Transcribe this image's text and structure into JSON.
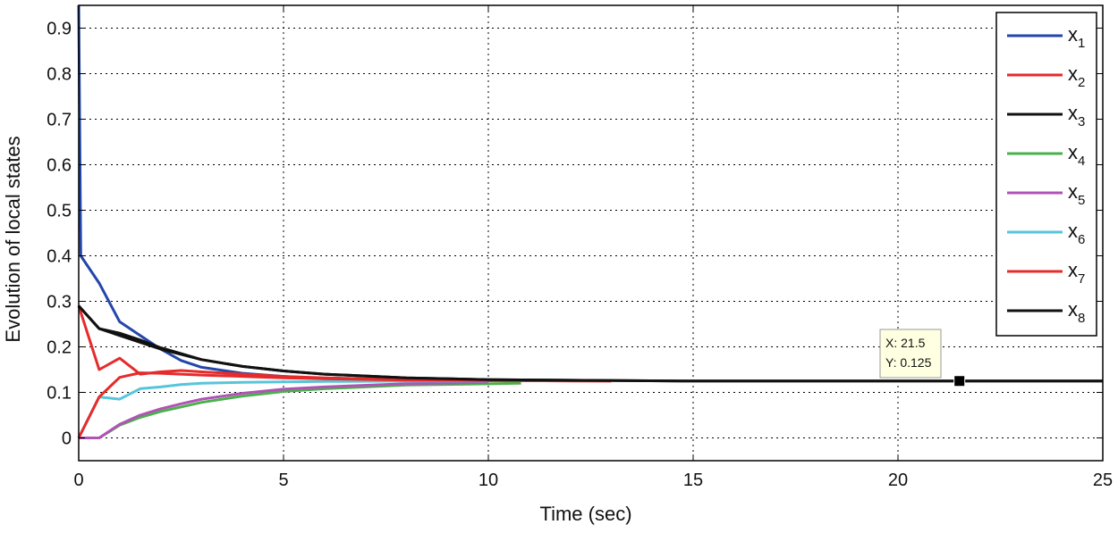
{
  "chart_data": {
    "type": "line",
    "title": "",
    "xlabel": "Time (sec)",
    "ylabel": "Evolution of local states",
    "xlim": [
      0,
      25
    ],
    "ylim": [
      -0.05,
      0.95
    ],
    "xticks": [
      "0",
      "5",
      "10",
      "15",
      "20",
      "25"
    ],
    "yticks": [
      "0",
      "0.1",
      "0.2",
      "0.3",
      "0.4",
      "0.5",
      "0.6",
      "0.7",
      "0.8",
      "0.9"
    ],
    "grid": true,
    "legend_position": "top-right",
    "series": [
      {
        "name": "x1",
        "label_main": "x",
        "label_sub": "1",
        "color": "#2346a8",
        "x": [
          0,
          0.05,
          0.5,
          1,
          1.5,
          2,
          2.5,
          3,
          4,
          5,
          6,
          8,
          10
        ],
        "y": [
          0.95,
          0.4,
          0.34,
          0.255,
          0.225,
          0.195,
          0.17,
          0.155,
          0.142,
          0.135,
          0.13,
          0.127,
          0.126
        ]
      },
      {
        "name": "x2",
        "label_main": "x",
        "label_sub": "2",
        "color": "#e52b2b",
        "x": [
          0,
          0.5,
          1,
          1.5,
          2,
          2.5,
          3,
          4,
          5,
          6,
          8,
          10,
          13
        ],
        "y": [
          0.29,
          0.15,
          0.175,
          0.14,
          0.145,
          0.148,
          0.145,
          0.14,
          0.135,
          0.132,
          0.128,
          0.126,
          0.125
        ]
      },
      {
        "name": "x3",
        "label_main": "x",
        "label_sub": "3",
        "color": "#111111",
        "x": [
          0,
          0.5,
          1,
          1.5,
          2,
          2.5,
          3,
          4,
          5,
          6,
          8,
          10,
          15,
          20,
          25
        ],
        "y": [
          0.29,
          0.24,
          0.23,
          0.215,
          0.198,
          0.185,
          0.172,
          0.157,
          0.147,
          0.14,
          0.132,
          0.128,
          0.125,
          0.125,
          0.125
        ]
      },
      {
        "name": "x4",
        "label_main": "x",
        "label_sub": "4",
        "color": "#49b14b",
        "x": [
          0,
          0.5,
          1,
          1.5,
          2,
          2.5,
          3,
          4,
          5,
          6,
          8,
          10.8
        ],
        "y": [
          0,
          0,
          0.028,
          0.045,
          0.058,
          0.068,
          0.078,
          0.092,
          0.102,
          0.108,
          0.116,
          0.12
        ]
      },
      {
        "name": "x5",
        "label_main": "x",
        "label_sub": "5",
        "color": "#b053b5",
        "x": [
          0,
          0.5,
          1,
          1.5,
          2,
          2.5,
          3,
          4,
          5,
          6,
          8,
          10
        ],
        "y": [
          0,
          0,
          0.03,
          0.05,
          0.064,
          0.075,
          0.085,
          0.098,
          0.107,
          0.112,
          0.119,
          0.122
        ]
      },
      {
        "name": "x6",
        "label_main": "x",
        "label_sub": "6",
        "color": "#57c5d9",
        "x": [
          0,
          0.5,
          1,
          1.5,
          2,
          2.5,
          3,
          4,
          5,
          6,
          8,
          10
        ],
        "y": [
          0,
          0.09,
          0.085,
          0.108,
          0.112,
          0.117,
          0.12,
          0.122,
          0.123,
          0.124,
          0.125,
          0.125
        ]
      },
      {
        "name": "x7",
        "label_main": "x",
        "label_sub": "7",
        "color": "#e52b2b",
        "x": [
          0,
          0.5,
          1,
          1.5,
          2,
          2.5,
          3,
          4,
          5,
          6,
          8,
          10,
          13
        ],
        "y": [
          0,
          0.09,
          0.133,
          0.143,
          0.142,
          0.14,
          0.138,
          0.135,
          0.132,
          0.13,
          0.127,
          0.126,
          0.125
        ]
      },
      {
        "name": "x8",
        "label_main": "x",
        "label_sub": "8",
        "color": "#111111",
        "x": [
          0,
          0.5,
          1,
          1.5,
          2,
          3,
          4,
          5,
          6,
          8,
          10,
          15,
          20,
          25
        ],
        "y": [
          0.29,
          0.24,
          0.225,
          0.21,
          0.195,
          0.172,
          0.157,
          0.147,
          0.14,
          0.132,
          0.128,
          0.125,
          0.125,
          0.125
        ]
      }
    ],
    "datatip": {
      "x": 21.5,
      "y": 0.125,
      "line1": "X: 21.5",
      "line2": "Y: 0.125"
    }
  }
}
